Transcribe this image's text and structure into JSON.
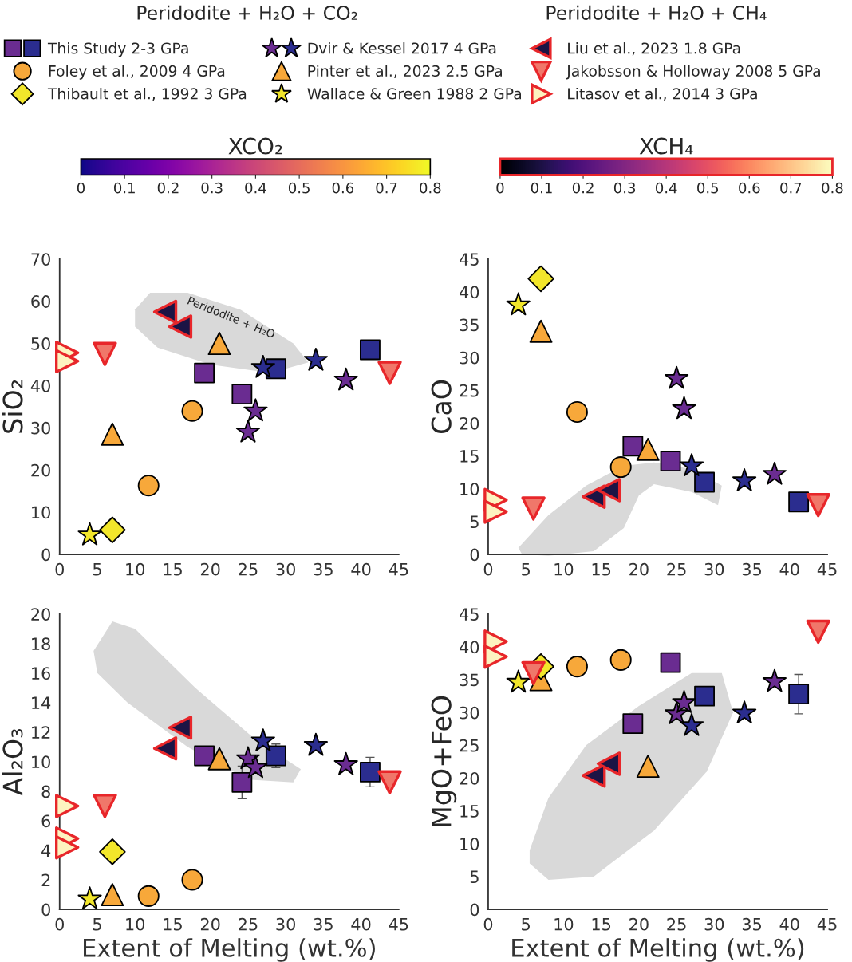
{
  "chart_data": [
    {
      "type": "scatter",
      "ylabel": "SiO₂",
      "xlim": [
        0,
        45
      ],
      "xticks": [
        0,
        5,
        10,
        15,
        20,
        25,
        30,
        35,
        40,
        45
      ],
      "ylim": [
        0,
        70
      ],
      "yticks": [
        0,
        10,
        20,
        30,
        40,
        50,
        60,
        70
      ],
      "legend": "top",
      "clabel": "XCO₂",
      "clim": [
        0,
        0.8
      ],
      "cticks": [
        0,
        0.1,
        0.2,
        0.3,
        0.4,
        0.5,
        0.6,
        0.7,
        0.8
      ],
      "annotations": [
        "Peridodite + H₂O + CO₂",
        "Peridodite + H₂O + CH₄",
        "Peridodite + H₂O"
      ],
      "series": [
        {
          "name": "This Study 2-3 GPa",
          "marker": "square",
          "x": [
            19.2,
            24.2,
            28.7,
            41.2
          ],
          "values": [
            43,
            38,
            44,
            48.5
          ],
          "colors": [
            "#6a2c91",
            "#6a2c91",
            "#2b2d8f",
            "#2b2d8f"
          ]
        },
        {
          "name": "Dvir & Kessel 2017 4 GPa",
          "marker": "star",
          "x": [
            25,
            26,
            27,
            34,
            38
          ],
          "values": [
            29,
            34,
            44.3,
            46,
            41.3
          ],
          "colors": [
            "#6a2c91",
            "#6a2c91",
            "#2b2d8f",
            "#2b2d8f",
            "#6a2c91"
          ]
        },
        {
          "name": "Foley et al., 2009 4 GPa",
          "marker": "circle",
          "x": [
            11.8,
            17.6
          ],
          "values": [
            16.3,
            34
          ],
          "colors": [
            "#f7a83a",
            "#f7a83a"
          ]
        },
        {
          "name": "Pinter et al., 2023 2.5 GPa",
          "marker": "triangle",
          "x": [
            7,
            21.2
          ],
          "values": [
            28.5,
            50
          ],
          "colors": [
            "#f7a83a",
            "#f7a83a"
          ]
        },
        {
          "name": "Thibault et al., 1992 3 GPa",
          "marker": "diamond",
          "x": [
            7
          ],
          "values": [
            5.8
          ],
          "colors": [
            "#f2e62b"
          ]
        },
        {
          "name": "Wallace & Green 1988 2 GPa",
          "marker": "star",
          "x": [
            4
          ],
          "values": [
            4.6
          ],
          "colors": [
            "#f2e62b"
          ]
        },
        {
          "name": "Liu et al., 2023 1.8 GPa",
          "marker": "triangle-left",
          "x": [
            14,
            16
          ],
          "values": [
            57.5,
            54
          ],
          "colors": [
            "#1c1445",
            "#1c1445"
          ]
        },
        {
          "name": "Jakobsson & Holloway 2008 5 GPa",
          "marker": "triangle-down",
          "x": [
            6,
            43.8
          ],
          "values": [
            47.5,
            43
          ],
          "colors": [
            "#f0776a",
            "#f0776a"
          ]
        },
        {
          "name": "Litasov et al., 2014 3 GPa",
          "marker": "triangle-right",
          "x": [
            1,
            1
          ],
          "values": [
            47.8,
            45.8
          ],
          "colors": [
            "#fdf3c0",
            "#fdf3c0"
          ]
        }
      ]
    },
    {
      "type": "scatter",
      "ylabel": "CaO",
      "xlim": [
        0,
        45
      ],
      "xticks": [
        0,
        5,
        10,
        15,
        20,
        25,
        30,
        35,
        40,
        45
      ],
      "ylim": [
        0,
        45
      ],
      "yticks": [
        0,
        5,
        10,
        15,
        20,
        25,
        30,
        35,
        40,
        45
      ],
      "clabel": "XCH₄",
      "clim": [
        0,
        0.8
      ],
      "cticks": [
        0,
        0.1,
        0.2,
        0.3,
        0.4,
        0.5,
        0.6,
        0.7,
        0.8
      ],
      "series": [
        {
          "marker": "square",
          "x": [
            19.2,
            24.2,
            28.7,
            41.2
          ],
          "values": [
            16.5,
            14.2,
            11,
            8
          ],
          "colors": [
            "#6a2c91",
            "#6a2c91",
            "#2b2d8f",
            "#2b2d8f"
          ]
        },
        {
          "marker": "star",
          "x": [
            25,
            26,
            27,
            34,
            38
          ],
          "values": [
            26.8,
            22.2,
            13.5,
            11.2,
            12.2
          ],
          "colors": [
            "#6a2c91",
            "#6a2c91",
            "#2b2d8f",
            "#2b2d8f",
            "#6a2c91"
          ]
        },
        {
          "marker": "circle",
          "x": [
            11.8,
            17.6
          ],
          "values": [
            21.7,
            13.3
          ],
          "colors": [
            "#f7a83a",
            "#f7a83a"
          ]
        },
        {
          "marker": "triangle",
          "x": [
            7,
            21.2
          ],
          "values": [
            34,
            16
          ],
          "colors": [
            "#f7a83a",
            "#f7a83a"
          ]
        },
        {
          "marker": "diamond",
          "x": [
            7
          ],
          "values": [
            42
          ],
          "colors": [
            "#f2e62b"
          ]
        },
        {
          "marker": "star",
          "x": [
            4
          ],
          "values": [
            38
          ],
          "colors": [
            "#f2e62b"
          ]
        },
        {
          "marker": "triangle-left",
          "x": [
            14,
            16
          ],
          "values": [
            8.8,
            9.8
          ],
          "colors": [
            "#1c1445",
            "#1c1445"
          ]
        },
        {
          "marker": "triangle-down",
          "x": [
            6,
            43.8
          ],
          "values": [
            7,
            7.5
          ],
          "colors": [
            "#f0776a",
            "#f0776a"
          ]
        },
        {
          "marker": "triangle-right",
          "x": [
            1,
            1
          ],
          "values": [
            8.3,
            6.5
          ],
          "colors": [
            "#fdf3c0",
            "#fdf3c0"
          ]
        }
      ]
    },
    {
      "type": "scatter",
      "xlabel": "Extent of Melting (wt.%)",
      "ylabel": "Al₂O₃",
      "xlim": [
        0,
        45
      ],
      "xticks": [
        0,
        5,
        10,
        15,
        20,
        25,
        30,
        35,
        40,
        45
      ],
      "ylim": [
        0,
        20
      ],
      "yticks": [
        0,
        2,
        4,
        6,
        8,
        10,
        12,
        14,
        16,
        18,
        20
      ],
      "series": [
        {
          "marker": "square",
          "x": [
            19.2,
            24.2,
            28.7,
            41.2
          ],
          "values": [
            10.4,
            8.6,
            10.4,
            9.3
          ],
          "errors": [
            null,
            1.1,
            0.8,
            1.0
          ],
          "colors": [
            "#6a2c91",
            "#6a2c91",
            "#2b2d8f",
            "#2b2d8f"
          ]
        },
        {
          "marker": "star",
          "x": [
            25,
            26,
            27,
            34,
            38
          ],
          "values": [
            10.2,
            9.6,
            11.4,
            11.1,
            9.8
          ],
          "colors": [
            "#6a2c91",
            "#6a2c91",
            "#2b2d8f",
            "#2b2d8f",
            "#6a2c91"
          ]
        },
        {
          "marker": "circle",
          "x": [
            11.8,
            17.6
          ],
          "values": [
            0.9,
            2.0
          ],
          "colors": [
            "#f7a83a",
            "#f7a83a"
          ]
        },
        {
          "marker": "triangle",
          "x": [
            7,
            21.2
          ],
          "values": [
            1.0,
            10.2
          ],
          "colors": [
            "#f7a83a",
            "#f7a83a"
          ]
        },
        {
          "marker": "diamond",
          "x": [
            7
          ],
          "values": [
            3.9
          ],
          "colors": [
            "#f2e62b"
          ]
        },
        {
          "marker": "star",
          "x": [
            4
          ],
          "values": [
            0.7
          ],
          "colors": [
            "#f2e62b"
          ]
        },
        {
          "marker": "triangle-left",
          "x": [
            14,
            16
          ],
          "values": [
            10.9,
            12.3
          ],
          "colors": [
            "#1c1445",
            "#1c1445"
          ]
        },
        {
          "marker": "triangle-down",
          "x": [
            6,
            43.8
          ],
          "values": [
            7.0,
            8.6
          ],
          "colors": [
            "#f0776a",
            "#f0776a"
          ]
        },
        {
          "marker": "triangle-right",
          "x": [
            1,
            1,
            1
          ],
          "values": [
            7.0,
            4.8,
            4.2
          ],
          "colors": [
            "#fdf3c0",
            "#fdf3c0",
            "#fdf3c0"
          ]
        }
      ]
    },
    {
      "type": "scatter",
      "xlabel": "Extent of Melting (wt.%)",
      "ylabel": "MgO+FeO",
      "xlim": [
        0,
        45
      ],
      "xticks": [
        0,
        5,
        10,
        15,
        20,
        25,
        30,
        35,
        40,
        45
      ],
      "ylim": [
        0,
        45
      ],
      "yticks": [
        0,
        5,
        10,
        15,
        20,
        25,
        30,
        35,
        40,
        45
      ],
      "series": [
        {
          "marker": "square",
          "x": [
            19.2,
            24.2,
            28.7,
            41.2
          ],
          "values": [
            28.3,
            37.6,
            32.5,
            32.8
          ],
          "errors": [
            null,
            null,
            null,
            3.0
          ],
          "colors": [
            "#6a2c91",
            "#6a2c91",
            "#2b2d8f",
            "#2b2d8f"
          ]
        },
        {
          "marker": "star",
          "x": [
            25,
            26,
            27,
            34,
            38
          ],
          "values": [
            29.8,
            31.5,
            28,
            29.9,
            34.7
          ],
          "colors": [
            "#6a2c91",
            "#6a2c91",
            "#2b2d8f",
            "#2b2d8f",
            "#6a2c91"
          ]
        },
        {
          "marker": "circle",
          "x": [
            11.8,
            17.6
          ],
          "values": [
            37,
            38
          ],
          "colors": [
            "#f7a83a",
            "#f7a83a"
          ]
        },
        {
          "marker": "triangle",
          "x": [
            7,
            21.2
          ],
          "values": [
            35,
            21.8
          ],
          "colors": [
            "#f7a83a",
            "#f7a83a"
          ]
        },
        {
          "marker": "diamond",
          "x": [
            7
          ],
          "values": [
            37
          ],
          "colors": [
            "#f2e62b"
          ]
        },
        {
          "marker": "star",
          "x": [
            4
          ],
          "values": [
            34.6
          ],
          "colors": [
            "#f2e62b"
          ]
        },
        {
          "marker": "triangle-left",
          "x": [
            14,
            16
          ],
          "values": [
            20.4,
            22.2
          ],
          "colors": [
            "#1c1445",
            "#1c1445"
          ]
        },
        {
          "marker": "triangle-down",
          "x": [
            6,
            43.8
          ],
          "values": [
            36,
            42.3
          ],
          "colors": [
            "#f0776a",
            "#f0776a"
          ]
        },
        {
          "marker": "triangle-right",
          "x": [
            1,
            1
          ],
          "values": [
            40.8,
            38.5
          ],
          "colors": [
            "#fdf3c0",
            "#fdf3c0"
          ]
        }
      ]
    }
  ]
}
